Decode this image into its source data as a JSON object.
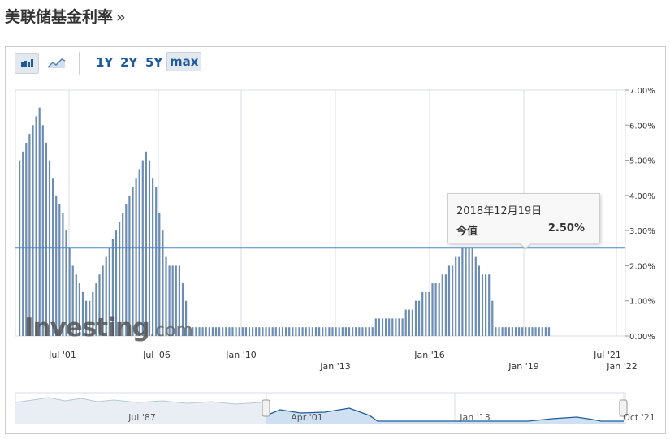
{
  "page": {
    "title": "美联储基金利率",
    "title_arrow": "»"
  },
  "toolbar": {
    "chart_type_bar_icon": "bar-chart-icon",
    "chart_type_line_icon": "line-chart-icon",
    "ranges": [
      "1Y",
      "2Y",
      "5Y",
      "max"
    ],
    "active_range": "max"
  },
  "tooltip": {
    "date": "2018年12月19日",
    "label": "今值",
    "value": "2.50%"
  },
  "watermark": {
    "brand": "Investing",
    "suffix": ".com"
  },
  "colors": {
    "bar": "#6b8cb3",
    "hover_line": "#4a86c5",
    "grid": "#d8dde3",
    "navigator_fill": "#cfe0f3",
    "navigator_line": "#1f5c99"
  },
  "navigator": {
    "labels": [
      "Jul '87",
      "Apr '01",
      "Jan '13",
      "Oct '21"
    ]
  },
  "chart_data": {
    "type": "bar",
    "y_axis": {
      "ticks": [
        "7.00%",
        "6.00%",
        "5.00%",
        "4.00%",
        "3.00%",
        "2.00%",
        "1.00%",
        "0.00%"
      ],
      "ylim": [
        0,
        7
      ],
      "position": "right"
    },
    "x_axis": {
      "row1": [
        "Jul '01",
        "Jul '06",
        "Jan '10",
        "Jan '16",
        "Jul '21"
      ],
      "row2": [
        "Jan '13",
        "Jan '19",
        "Jan '22"
      ]
    },
    "hover_level": 2.5,
    "series": [
      {
        "values": [
          5.0,
          5.25,
          5.5,
          5.75,
          6.0,
          6.25,
          6.5,
          6.0,
          5.5,
          5.0,
          4.5,
          4.0,
          3.75,
          3.5,
          3.0,
          2.5,
          2.0,
          1.75,
          1.5,
          1.25,
          1.0,
          1.0,
          1.25,
          1.5,
          1.75,
          2.0,
          2.25,
          2.5,
          2.75,
          3.0,
          3.25,
          3.5,
          3.75,
          4.0,
          4.25,
          4.5,
          4.75,
          5.0,
          5.25,
          5.0,
          4.5,
          4.25,
          3.5,
          3.0,
          2.25,
          2.0,
          2.0,
          2.0,
          2.0,
          1.5,
          1.0,
          0.25,
          0.25,
          0.25,
          0.25,
          0.25,
          0.25,
          0.25,
          0.25,
          0.25,
          0.25,
          0.25,
          0.25,
          0.25,
          0.25,
          0.25,
          0.25,
          0.25,
          0.25,
          0.25,
          0.25,
          0.25,
          0.25,
          0.25,
          0.25,
          0.25,
          0.25,
          0.25,
          0.25,
          0.25,
          0.25,
          0.25,
          0.25,
          0.25,
          0.25,
          0.25,
          0.25,
          0.25,
          0.25,
          0.25,
          0.25,
          0.25,
          0.25,
          0.25,
          0.25,
          0.25,
          0.25,
          0.25,
          0.25,
          0.25,
          0.25,
          0.25,
          0.25,
          0.25,
          0.25,
          0.25,
          0.25,
          0.5,
          0.5,
          0.5,
          0.5,
          0.5,
          0.5,
          0.5,
          0.5,
          0.5,
          0.75,
          0.75,
          0.75,
          1.0,
          1.0,
          1.25,
          1.25,
          1.25,
          1.5,
          1.5,
          1.5,
          1.75,
          1.75,
          2.0,
          2.0,
          2.25,
          2.25,
          2.5,
          2.5,
          2.5,
          2.5,
          2.25,
          2.0,
          1.75,
          1.75,
          1.75,
          1.0,
          0.25,
          0.25,
          0.25,
          0.25,
          0.25,
          0.25,
          0.25,
          0.25,
          0.25,
          0.25,
          0.25,
          0.25,
          0.25,
          0.25,
          0.25,
          0.25,
          0.25
        ]
      }
    ]
  }
}
